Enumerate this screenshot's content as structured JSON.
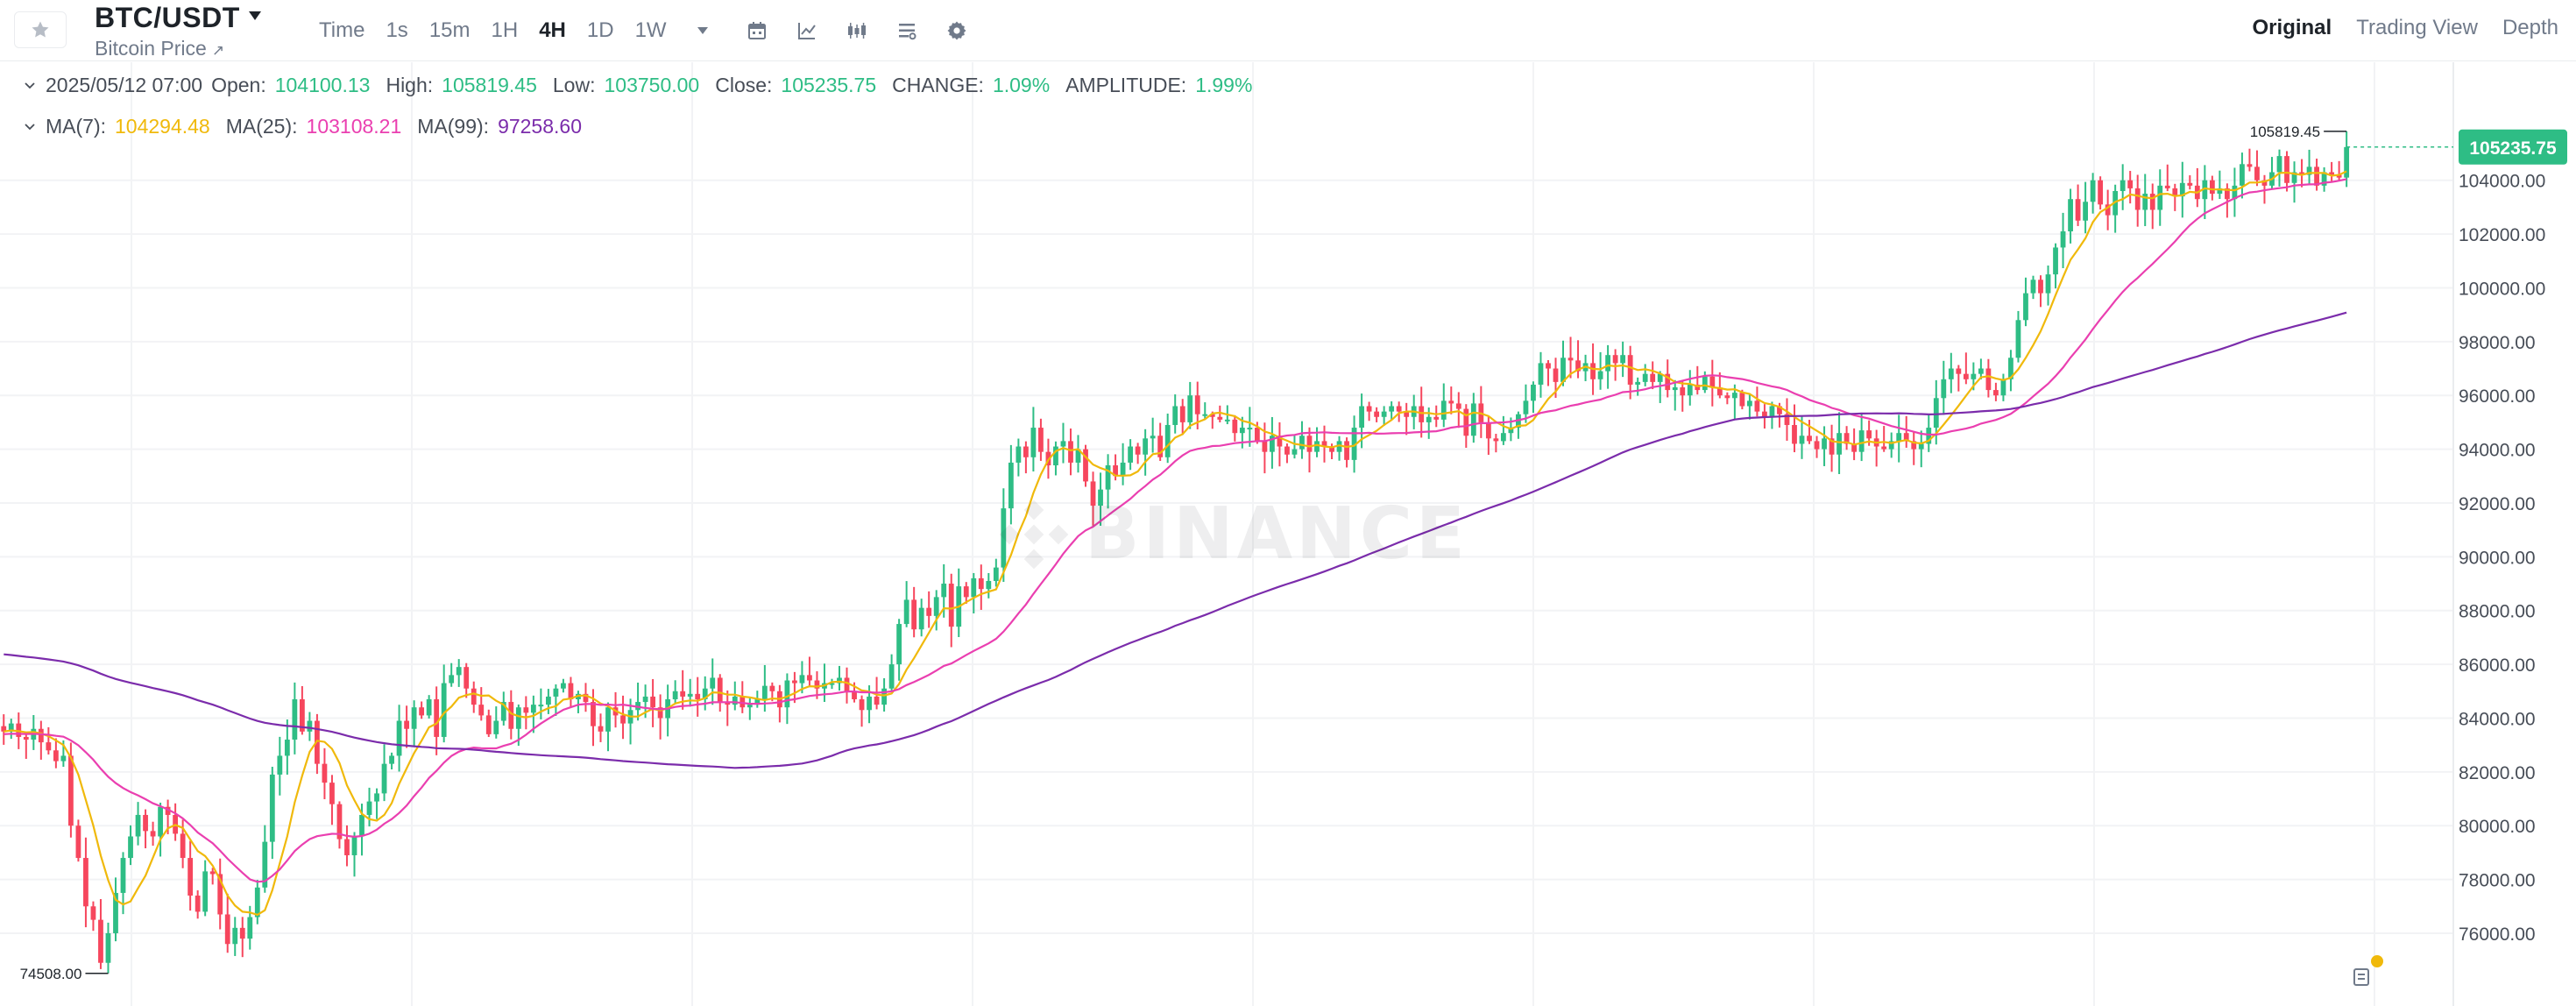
{
  "header": {
    "pair": "BTC/USDT",
    "subtitle": "Bitcoin Price",
    "subtitle_arrow": "↗",
    "intervals": [
      {
        "label": "Time",
        "active": false
      },
      {
        "label": "1s",
        "active": false
      },
      {
        "label": "15m",
        "active": false
      },
      {
        "label": "1H",
        "active": false
      },
      {
        "label": "4H",
        "active": true
      },
      {
        "label": "1D",
        "active": false
      },
      {
        "label": "1W",
        "active": false
      }
    ],
    "tools": [
      "calendar-icon",
      "line-chart-icon",
      "candlestick-icon",
      "indicator-settings-icon",
      "gear-icon"
    ],
    "view_tabs": [
      {
        "label": "Original",
        "active": true
      },
      {
        "label": "Trading View",
        "active": false
      },
      {
        "label": "Depth",
        "active": false
      }
    ]
  },
  "legend": {
    "date": "2025/05/12 07:00",
    "open_label": "Open:",
    "open": "104100.13",
    "high_label": "High:",
    "high": "105819.45",
    "low_label": "Low:",
    "low": "103750.00",
    "close_label": "Close:",
    "close": "105235.75",
    "change_label": "CHANGE:",
    "change": "1.09%",
    "amplitude_label": "AMPLITUDE:",
    "amplitude": "1.99%",
    "ma7_label": "MA(7):",
    "ma7": "104294.48",
    "ma25_label": "MA(25):",
    "ma25": "103108.21",
    "ma99_label": "MA(99):",
    "ma99": "97258.60"
  },
  "watermark": "BINANCE",
  "colors": {
    "up": "#2ebd85",
    "down": "#f6465d",
    "ma7": "#f0b90b",
    "ma25": "#ea3fb0",
    "ma99": "#7b2cab",
    "grid": "#f2f3f5",
    "axis_text": "#474d57",
    "last_price_bg": "#2ebd85"
  },
  "chart_data": {
    "type": "candlestick",
    "interval": "4H",
    "ylim": [
      74500,
      106500
    ],
    "y_ticks": [
      "76000.00",
      "78000.00",
      "80000.00",
      "82000.00",
      "84000.00",
      "86000.00",
      "88000.00",
      "90000.00",
      "92000.00",
      "94000.00",
      "96000.00",
      "98000.00",
      "100000.00",
      "102000.00",
      "104000.00"
    ],
    "last_price": "105235.75",
    "high_marker": "105819.45",
    "low_marker": "74508.00",
    "closes": [
      83500,
      83800,
      83300,
      83200,
      83600,
      83100,
      82800,
      82400,
      82600,
      80000,
      78800,
      77000,
      76500,
      74900,
      76000,
      77500,
      78800,
      79600,
      80400,
      79800,
      79600,
      80700,
      80400,
      79700,
      78800,
      77400,
      76800,
      78300,
      78200,
      76700,
      75600,
      76200,
      75800,
      76600,
      77700,
      79400,
      81900,
      82600,
      83200,
      84700,
      83500,
      83900,
      82300,
      81600,
      80800,
      79500,
      78900,
      79600,
      80400,
      80900,
      81200,
      82300,
      82600,
      83900,
      83600,
      84400,
      84100,
      84700,
      83300,
      85300,
      85600,
      85900,
      85100,
      84500,
      84100,
      83400,
      83900,
      84600,
      83600,
      84400,
      84200,
      84500,
      84500,
      84800,
      85100,
      85300,
      84700,
      84900,
      84600,
      83700,
      83500,
      84400,
      84100,
      83800,
      84300,
      84600,
      84800,
      84400,
      84000,
      84700,
      85000,
      84800,
      84900,
      84700,
      85100,
      85500,
      84600,
      84500,
      84800,
      84400,
      84500,
      84700,
      85200,
      85000,
      84400,
      85400,
      85300,
      85600,
      85400,
      85100,
      85300,
      85300,
      85500,
      85000,
      84700,
      84300,
      84800,
      84500,
      85100,
      86000,
      87500,
      88400,
      87300,
      88100,
      87800,
      88500,
      89000,
      87400,
      88900,
      88500,
      89200,
      88800,
      89100,
      89600,
      91800,
      93500,
      94100,
      93700,
      94800,
      93900,
      93400,
      94100,
      94300,
      93500,
      94000,
      92800,
      91900,
      92500,
      93400,
      93000,
      93500,
      94100,
      93800,
      94400,
      94500,
      93700,
      94900,
      95600,
      95000,
      96000,
      95300,
      95300,
      95200,
      95100,
      95100,
      94600,
      94800,
      94800,
      94300,
      93900,
      94500,
      94100,
      93800,
      94000,
      94500,
      93900,
      94300,
      94100,
      93900,
      94300,
      93600,
      94800,
      95600,
      95400,
      95200,
      95400,
      95600,
      95400,
      95200,
      95600,
      95000,
      95200,
      95100,
      95800,
      95700,
      95500,
      94500,
      95700,
      95000,
      94400,
      94300,
      94600,
      94800,
      95300,
      95800,
      96400,
      97200,
      97000,
      96500,
      97400,
      97300,
      96900,
      97200,
      96600,
      96900,
      97500,
      97200,
      97500,
      96400,
      96500,
      96800,
      96500,
      96800,
      96200,
      96300,
      96000,
      96400,
      96200,
      96700,
      96300,
      96000,
      95900,
      96100,
      95600,
      95800,
      95400,
      95200,
      95600,
      95300,
      94900,
      94200,
      94500,
      94300,
      94000,
      94400,
      93800,
      94600,
      94200,
      93900,
      94700,
      94400,
      94100,
      94000,
      94300,
      94600,
      94300,
      94000,
      94200,
      94800,
      95900,
      96600,
      97000,
      96800,
      96600,
      96800,
      97000,
      96200,
      96000,
      96600,
      97400,
      98800,
      99800,
      100300,
      99800,
      100500,
      101500,
      102100,
      103300,
      102500,
      103200,
      104000,
      103100,
      102700,
      103600,
      104000,
      103700,
      102900,
      103500,
      102900,
      103800,
      103700,
      103400,
      103900,
      103800,
      103300,
      104000,
      103500,
      103700,
      103300,
      103800,
      104600,
      104500,
      104000,
      103800,
      104300,
      104900,
      103900,
      104300,
      104200,
      104500,
      103800,
      104300,
      104200,
      104100,
      105235.75
    ],
    "ma7_last": 104294.48,
    "ma25_last": 103108.21,
    "ma99_last": 97258.6
  }
}
